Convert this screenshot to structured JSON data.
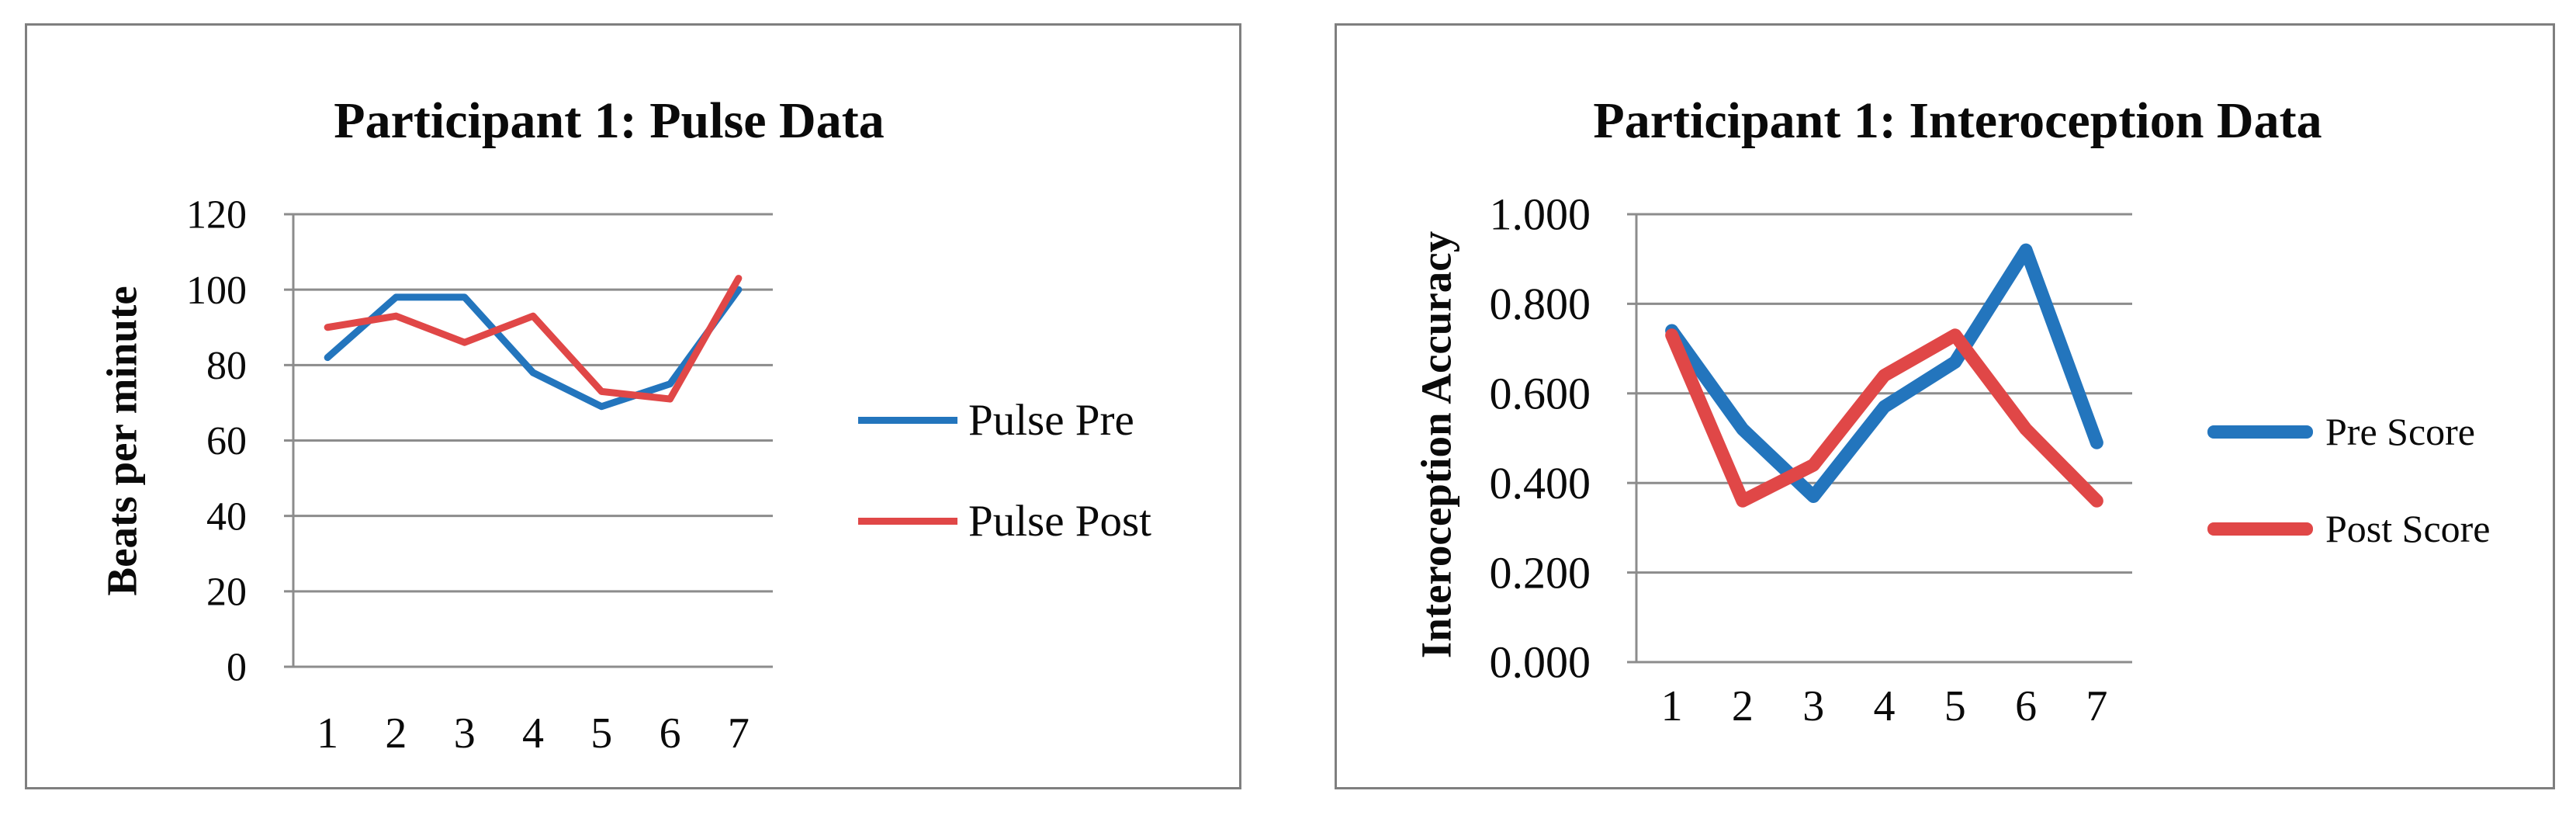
{
  "page": {
    "background": "#ffffff",
    "border_color": "#7f7f7f",
    "gridline_color": "#8c8c8c"
  },
  "chart_data": [
    {
      "type": "line",
      "title": "Participant 1: Pulse Data",
      "xlabel": "",
      "ylabel": "Beats per minute",
      "categories": [
        "1",
        "2",
        "3",
        "4",
        "5",
        "6",
        "7"
      ],
      "series": [
        {
          "name": "Pulse Pre",
          "color": "#2375bd",
          "values": [
            82,
            98,
            98,
            78,
            69,
            75,
            100
          ]
        },
        {
          "name": "Pulse Post",
          "color": "#e04747",
          "values": [
            90,
            93,
            86,
            93,
            73,
            71,
            103
          ]
        }
      ],
      "ylim": [
        0,
        120
      ],
      "ytick_step": 20,
      "ytick_decimals": 0,
      "ytick_labels": [
        "0",
        "20",
        "40",
        "60",
        "80",
        "100",
        "120"
      ],
      "grid": true,
      "legend_position": "right"
    },
    {
      "type": "line",
      "title": "Participant 1: Interoception Data",
      "xlabel": "",
      "ylabel": "Interoception Accuracy",
      "categories": [
        "1",
        "2",
        "3",
        "4",
        "5",
        "6",
        "7"
      ],
      "series": [
        {
          "name": "Pre Score",
          "color": "#2375bd",
          "values": [
            0.74,
            0.52,
            0.37,
            0.57,
            0.67,
            0.92,
            0.49
          ]
        },
        {
          "name": "Post Score",
          "color": "#e04747",
          "values": [
            0.73,
            0.36,
            0.44,
            0.64,
            0.73,
            0.52,
            0.36
          ]
        }
      ],
      "ylim": [
        0,
        1
      ],
      "ytick_step": 0.2,
      "ytick_decimals": 3,
      "ytick_labels": [
        "0.000",
        "0.200",
        "0.400",
        "0.600",
        "0.800",
        "1.000"
      ],
      "grid": true,
      "legend_position": "right"
    }
  ]
}
